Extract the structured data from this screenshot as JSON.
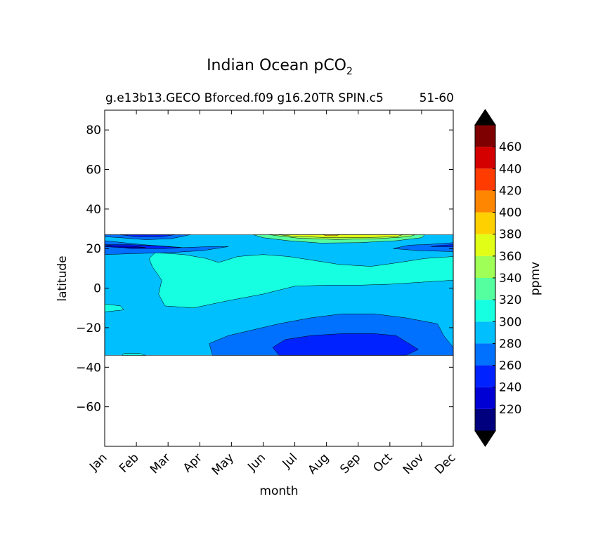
{
  "chart_data": {
    "type": "heatmap",
    "title": "Indian Ocean pCO",
    "title_subscript": "2",
    "subtitle_left": "g.e13b13.GECO Bforced.f09 g16.20TR SPIN.c5",
    "subtitle_right": "51-60",
    "xlabel": "month",
    "ylabel": "latitude",
    "x_tick_labels": [
      "Jan",
      "Feb",
      "Mar",
      "Apr",
      "May",
      "Jun",
      "Jul",
      "Aug",
      "Sep",
      "Oct",
      "Nov",
      "Dec"
    ],
    "y_ticks": [
      80,
      60,
      40,
      20,
      0,
      -20,
      -40,
      -60
    ],
    "y_tick_labels": [
      "80",
      "60",
      "40",
      "20",
      "0",
      "−20",
      "−40",
      "−60"
    ],
    "ylim": [
      -80,
      90
    ],
    "xlim": [
      0,
      11
    ],
    "data_lat_range": [
      -34,
      27
    ],
    "colorbar": {
      "label": "ppmv",
      "levels": [
        200,
        220,
        240,
        260,
        280,
        300,
        320,
        340,
        360,
        380,
        400,
        420,
        440,
        460,
        480
      ],
      "tick_values": [
        220,
        240,
        260,
        280,
        300,
        320,
        340,
        360,
        380,
        400,
        420,
        440,
        460
      ],
      "tick_labels": [
        "220",
        "240",
        "260",
        "280",
        "300",
        "320",
        "340",
        "360",
        "380",
        "400",
        "420",
        "440",
        "460"
      ],
      "colors": [
        "#00007f",
        "#0000d4",
        "#0022ff",
        "#0070ff",
        "#00bfff",
        "#16ffe1",
        "#55ff9f",
        "#9fff56",
        "#e1ff16",
        "#ffd000",
        "#ff8600",
        "#ff3b00",
        "#d40000",
        "#7f0000"
      ],
      "extend_color": "#000000"
    },
    "fill_color_by_level": {
      "220": "#0000d4",
      "240": "#0022ff",
      "260": "#0070ff",
      "280": "#00bfff",
      "300": "#16ffe1",
      "320": "#55ff9f",
      "340": "#9fff56",
      "360": "#e1ff16",
      "380": "#ffd000",
      "400": "#ff8600",
      "420": "#ff3b00"
    },
    "regions": [
      {
        "level": 280,
        "points": [
          [
            0,
            27
          ],
          [
            11,
            27
          ],
          [
            11,
            -34
          ],
          [
            0,
            -34
          ]
        ]
      },
      {
        "level": 300,
        "points": [
          [
            1.6,
            18
          ],
          [
            2.5,
            17
          ],
          [
            3.2,
            15
          ],
          [
            3.6,
            13
          ],
          [
            4.2,
            16
          ],
          [
            5,
            17
          ],
          [
            5.8,
            16
          ],
          [
            6.6,
            14
          ],
          [
            7.4,
            12
          ],
          [
            8.4,
            11
          ],
          [
            9.3,
            13
          ],
          [
            10.1,
            15
          ],
          [
            11,
            16
          ],
          [
            11,
            4
          ],
          [
            10,
            3
          ],
          [
            9,
            2
          ],
          [
            8,
            1.5
          ],
          [
            7,
            1.5
          ],
          [
            6,
            1
          ],
          [
            5,
            -3
          ],
          [
            4,
            -6
          ],
          [
            3.4,
            -8
          ],
          [
            2.8,
            -10
          ],
          [
            1.9,
            -9
          ],
          [
            1.7,
            -3
          ],
          [
            1.8,
            4
          ],
          [
            1.5,
            11
          ],
          [
            1.4,
            15
          ]
        ]
      },
      {
        "level": 300,
        "points": [
          [
            0,
            -8
          ],
          [
            0.5,
            -9
          ],
          [
            0.6,
            -11
          ],
          [
            0,
            -12
          ]
        ]
      },
      {
        "level": 300,
        "points": [
          [
            0.6,
            -33
          ],
          [
            1.1,
            -33
          ],
          [
            1.3,
            -34
          ],
          [
            0.55,
            -34
          ]
        ]
      },
      {
        "level": 300,
        "points": [
          [
            7.5,
            27
          ],
          [
            8.5,
            27
          ],
          [
            8.5,
            26
          ],
          [
            7.5,
            26
          ]
        ]
      },
      {
        "level": 320,
        "points": [
          [
            4.7,
            27
          ],
          [
            10.1,
            27
          ],
          [
            10,
            25.5
          ],
          [
            9.2,
            24
          ],
          [
            8,
            23
          ],
          [
            6.8,
            22.8
          ],
          [
            5.8,
            24
          ],
          [
            5,
            25.5
          ]
        ]
      },
      {
        "level": 340,
        "points": [
          [
            5.2,
            27
          ],
          [
            9.8,
            27
          ],
          [
            9.6,
            26
          ],
          [
            8.6,
            25
          ],
          [
            7.3,
            24.6
          ],
          [
            6.1,
            25.3
          ]
        ]
      },
      {
        "level": 360,
        "points": [
          [
            5.5,
            27
          ],
          [
            9.4,
            27
          ],
          [
            9.2,
            26
          ],
          [
            8.2,
            25.6
          ],
          [
            7,
            25.6
          ],
          [
            6,
            26.2
          ]
        ]
      },
      {
        "level": 380,
        "points": [
          [
            6.9,
            27
          ],
          [
            7.4,
            27
          ],
          [
            7.3,
            26.5
          ],
          [
            7,
            26.5
          ]
        ]
      },
      {
        "level": 260,
        "points": [
          [
            0,
            24
          ],
          [
            1.2,
            22
          ],
          [
            2.5,
            20.5
          ],
          [
            3.3,
            21
          ],
          [
            3.9,
            21
          ],
          [
            3.1,
            19
          ],
          [
            2.1,
            18
          ],
          [
            1,
            17.5
          ],
          [
            0,
            17
          ]
        ]
      },
      {
        "level": 260,
        "points": [
          [
            0,
            26
          ],
          [
            0.5,
            25.5
          ],
          [
            1.3,
            24.5
          ],
          [
            2.1,
            25
          ],
          [
            2.7,
            27
          ],
          [
            0,
            27
          ]
        ]
      },
      {
        "level": 260,
        "points": [
          [
            9.1,
            20
          ],
          [
            9.9,
            19
          ],
          [
            11,
            18.5
          ],
          [
            11,
            23
          ],
          [
            10.3,
            22.2
          ],
          [
            9.6,
            21.7
          ]
        ]
      },
      {
        "level": 260,
        "points": [
          [
            3.4,
            -34
          ],
          [
            3.3,
            -28
          ],
          [
            3.9,
            -24
          ],
          [
            4.7,
            -21
          ],
          [
            5.5,
            -18
          ],
          [
            6.5,
            -15
          ],
          [
            7.5,
            -13
          ],
          [
            8.5,
            -13
          ],
          [
            9.5,
            -15
          ],
          [
            10.5,
            -18
          ],
          [
            10.7,
            -24
          ],
          [
            11,
            -30
          ],
          [
            11,
            -34
          ]
        ]
      },
      {
        "level": 240,
        "points": [
          [
            0,
            22
          ],
          [
            0.8,
            20
          ],
          [
            1.9,
            20
          ],
          [
            2.4,
            20.5
          ],
          [
            1.5,
            21.5
          ],
          [
            0.8,
            22
          ]
        ]
      },
      {
        "level": 240,
        "points": [
          [
            0.5,
            27
          ],
          [
            2.2,
            27
          ],
          [
            1.8,
            26
          ],
          [
            1,
            26
          ]
        ]
      },
      {
        "level": 240,
        "points": [
          [
            10.3,
            21
          ],
          [
            11,
            21
          ],
          [
            11,
            22
          ],
          [
            10.5,
            21.5
          ]
        ]
      },
      {
        "level": 240,
        "points": [
          [
            5.5,
            -34
          ],
          [
            5.3,
            -30
          ],
          [
            5.7,
            -26
          ],
          [
            6.5,
            -24
          ],
          [
            7.5,
            -23
          ],
          [
            8.5,
            -23
          ],
          [
            9.2,
            -24
          ],
          [
            9.5,
            -27
          ],
          [
            9.9,
            -31
          ],
          [
            9.5,
            -34
          ]
        ]
      },
      {
        "level": 220,
        "points": [
          [
            0,
            21
          ],
          [
            0.5,
            20.5
          ],
          [
            1.3,
            20.5
          ],
          [
            0.8,
            21.3
          ],
          [
            0,
            21.5
          ]
        ]
      }
    ]
  }
}
